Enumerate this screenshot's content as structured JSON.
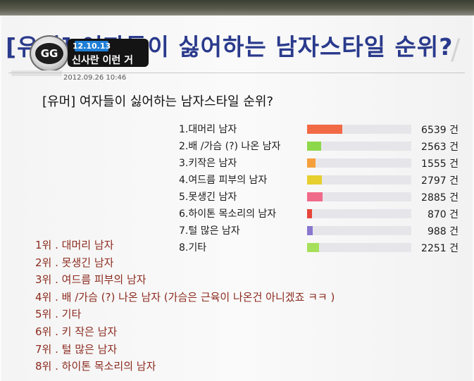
{
  "header": {
    "big_title": "[유머] 여자들이 싫어하는 남자스타일 순위?",
    "logo_text": "GG",
    "caption_date": "12.10.13",
    "caption_text": "신사란 이런 거",
    "timestamp": "2012.09.26 10:46"
  },
  "post": {
    "title": "[유머] 여자들이 싫어하는 남자스타일 순위?"
  },
  "poll": {
    "items": [
      {
        "label": "1.대머리 남자",
        "count": "6539 건",
        "value": 6539,
        "color": "#f26a45"
      },
      {
        "label": "2.배 /가슴 (?) 나온 남자",
        "count": "2563 건",
        "value": 2563,
        "color": "#8dd84a"
      },
      {
        "label": "3.키작은 남자",
        "count": "1555 건",
        "value": 1555,
        "color": "#f5a03c"
      },
      {
        "label": "4.여드름 피부의 남자",
        "count": "2797 건",
        "value": 2797,
        "color": "#e6cf2e"
      },
      {
        "label": "5.못생긴 남자",
        "count": "2885 건",
        "value": 2885,
        "color": "#f06a8a"
      },
      {
        "label": "6.하이톤 목소리의 남자",
        "count": "870 건",
        "value": 870,
        "color": "#e6453a"
      },
      {
        "label": "7.털 많은 남자",
        "count": "988 건",
        "value": 988,
        "color": "#8a78d0"
      },
      {
        "label": "8.기타",
        "count": "2251 건",
        "value": 2251,
        "color": "#a6e05a"
      }
    ],
    "max_value": 19350
  },
  "ranking": [
    "1위 .  대머리 남자",
    "2위 .  못생긴 남자",
    "3위 .  여드름 피부의 남자",
    "4위 .  배 /가슴 (?) 나온 남자 (가슴은 근육이 나온건 아니겠죠 ㅋㅋ )",
    "5위 .  기타",
    "6위 .  키 작은 남자",
    "7위 .  털 많은 남자",
    "8위 .  하이톤 목소리의 남자"
  ]
}
